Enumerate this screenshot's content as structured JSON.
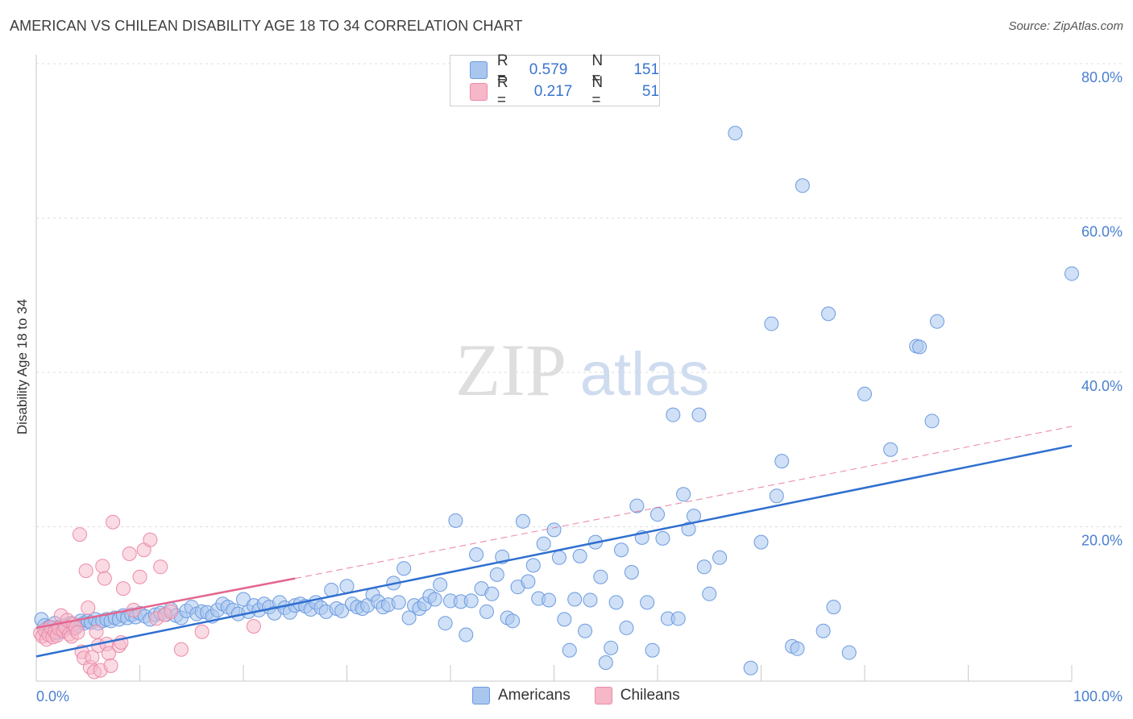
{
  "title": "AMERICAN VS CHILEAN DISABILITY AGE 18 TO 34 CORRELATION CHART",
  "source": "Source: ZipAtlas.com",
  "watermark": {
    "part1": "ZIP",
    "part2": "atlas"
  },
  "legend": {
    "americans": {
      "r_label": "R =",
      "r_value": "0.579",
      "n_label": "N =",
      "n_value": "151"
    },
    "chileans": {
      "r_label": "R =",
      "r_value": "0.217",
      "n_label": "N =",
      "n_value": "51"
    }
  },
  "colors": {
    "americans_fill": "#a9c6ee",
    "americans_stroke": "#6b9be0",
    "americans_line": "#2f6fd0",
    "chileans_fill": "#f6b7c9",
    "chileans_stroke": "#ec8aa7",
    "chileans_line": "#e3668f",
    "tick_text": "#4a7fd0",
    "grid": "#dcdcdc"
  },
  "chart_data": {
    "type": "scatter",
    "title": "AMERICAN VS CHILEAN DISABILITY AGE 18 TO 34 CORRELATION CHART",
    "xlabel": "",
    "ylabel": "Disability Age 18 to 34",
    "xlim": [
      0,
      100
    ],
    "ylim": [
      0,
      80
    ],
    "x_tick_labels": [
      {
        "value": 0,
        "label": "0.0%"
      },
      {
        "value": 100,
        "label": "100.0%"
      }
    ],
    "y_tick_labels": [
      {
        "value": 20,
        "label": "20.0%"
      },
      {
        "value": 40,
        "label": "40.0%"
      },
      {
        "value": 60,
        "label": "60.0%"
      },
      {
        "value": 80,
        "label": "80.0%"
      }
    ],
    "grid": true,
    "legend_position": "top-center",
    "series": [
      {
        "name": "Americans",
        "trend": {
          "x0": 0,
          "y0": 3.2,
          "x1": 100,
          "y1": 30.5,
          "style": "solid"
        },
        "points": [
          [
            0.5,
            8.0
          ],
          [
            0.8,
            7.2
          ],
          [
            1.0,
            6.5
          ],
          [
            1.2,
            7.0
          ],
          [
            1.5,
            6.8
          ],
          [
            1.8,
            7.5
          ],
          [
            2.0,
            6.2
          ],
          [
            2.2,
            7.0
          ],
          [
            2.5,
            6.8
          ],
          [
            2.8,
            7.2
          ],
          [
            3.0,
            7.0
          ],
          [
            3.3,
            7.5
          ],
          [
            3.6,
            6.8
          ],
          [
            4.0,
            7.2
          ],
          [
            4.3,
            7.8
          ],
          [
            4.6,
            7.5
          ],
          [
            5.0,
            7.8
          ],
          [
            5.3,
            7.6
          ],
          [
            5.7,
            8.0
          ],
          [
            6.0,
            7.5
          ],
          [
            6.4,
            7.8
          ],
          [
            6.8,
            8.0
          ],
          [
            7.2,
            7.8
          ],
          [
            7.6,
            8.2
          ],
          [
            8.0,
            8.0
          ],
          [
            8.4,
            8.5
          ],
          [
            8.8,
            8.2
          ],
          [
            9.2,
            8.6
          ],
          [
            9.6,
            8.3
          ],
          [
            10.0,
            8.8
          ],
          [
            10.5,
            8.4
          ],
          [
            11.0,
            8.0
          ],
          [
            11.5,
            8.6
          ],
          [
            12.0,
            8.8
          ],
          [
            12.5,
            8.6
          ],
          [
            13.0,
            9.3
          ],
          [
            13.5,
            8.5
          ],
          [
            14.0,
            8.2
          ],
          [
            14.5,
            9.1
          ],
          [
            15.0,
            9.6
          ],
          [
            15.5,
            8.7
          ],
          [
            16.0,
            9.0
          ],
          [
            16.5,
            8.9
          ],
          [
            17.0,
            8.4
          ],
          [
            17.5,
            9.2
          ],
          [
            18.0,
            10.0
          ],
          [
            18.5,
            9.6
          ],
          [
            19.0,
            9.2
          ],
          [
            19.5,
            8.7
          ],
          [
            20.0,
            10.6
          ],
          [
            20.5,
            9.0
          ],
          [
            21.0,
            9.8
          ],
          [
            21.5,
            9.2
          ],
          [
            22.0,
            10.0
          ],
          [
            22.5,
            9.6
          ],
          [
            23.0,
            8.8
          ],
          [
            23.5,
            10.2
          ],
          [
            24.0,
            9.5
          ],
          [
            24.5,
            8.9
          ],
          [
            25.0,
            9.8
          ],
          [
            25.5,
            10.0
          ],
          [
            26.0,
            9.7
          ],
          [
            26.5,
            9.3
          ],
          [
            27.0,
            10.2
          ],
          [
            27.5,
            9.5
          ],
          [
            28.0,
            9.0
          ],
          [
            28.5,
            11.8
          ],
          [
            29.0,
            9.4
          ],
          [
            29.5,
            9.1
          ],
          [
            30.0,
            12.3
          ],
          [
            30.5,
            10.0
          ],
          [
            31.0,
            9.6
          ],
          [
            31.5,
            9.4
          ],
          [
            32.0,
            9.8
          ],
          [
            32.5,
            11.2
          ],
          [
            33.0,
            10.3
          ],
          [
            33.5,
            9.6
          ],
          [
            34.0,
            9.9
          ],
          [
            34.5,
            12.7
          ],
          [
            35.0,
            10.2
          ],
          [
            35.5,
            14.6
          ],
          [
            36.0,
            8.2
          ],
          [
            36.5,
            9.8
          ],
          [
            37.0,
            9.4
          ],
          [
            37.5,
            10.0
          ],
          [
            38.0,
            11.0
          ],
          [
            38.5,
            10.6
          ],
          [
            39.0,
            12.5
          ],
          [
            39.5,
            7.5
          ],
          [
            40.0,
            10.4
          ],
          [
            40.5,
            20.8
          ],
          [
            41.0,
            10.3
          ],
          [
            41.5,
            6.0
          ],
          [
            42.0,
            10.4
          ],
          [
            42.5,
            16.4
          ],
          [
            43.0,
            12.0
          ],
          [
            43.5,
            9.0
          ],
          [
            44.0,
            11.3
          ],
          [
            44.5,
            13.8
          ],
          [
            45.0,
            16.1
          ],
          [
            45.5,
            8.2
          ],
          [
            46.0,
            7.8
          ],
          [
            46.5,
            12.2
          ],
          [
            47.0,
            20.7
          ],
          [
            47.5,
            12.9
          ],
          [
            48.0,
            15.0
          ],
          [
            48.5,
            10.7
          ],
          [
            49.0,
            17.8
          ],
          [
            49.5,
            10.5
          ],
          [
            50.0,
            19.6
          ],
          [
            50.5,
            16.0
          ],
          [
            51.0,
            8.0
          ],
          [
            51.5,
            4.0
          ],
          [
            52.0,
            10.6
          ],
          [
            52.5,
            16.2
          ],
          [
            53.0,
            6.5
          ],
          [
            53.5,
            10.5
          ],
          [
            54.0,
            18.0
          ],
          [
            54.5,
            13.5
          ],
          [
            55.0,
            2.4
          ],
          [
            55.5,
            4.3
          ],
          [
            56.0,
            10.2
          ],
          [
            56.5,
            17.0
          ],
          [
            57.0,
            6.9
          ],
          [
            57.5,
            14.1
          ],
          [
            58.0,
            22.7
          ],
          [
            58.5,
            18.6
          ],
          [
            59.0,
            10.2
          ],
          [
            59.5,
            4.0
          ],
          [
            60.0,
            21.6
          ],
          [
            60.5,
            18.5
          ],
          [
            61.0,
            8.1
          ],
          [
            61.5,
            34.5
          ],
          [
            62.0,
            8.1
          ],
          [
            62.5,
            24.2
          ],
          [
            63.0,
            19.7
          ],
          [
            63.5,
            21.4
          ],
          [
            64.0,
            34.5
          ],
          [
            64.5,
            14.8
          ],
          [
            65.0,
            11.3
          ],
          [
            67.5,
            71.0
          ],
          [
            69.0,
            1.7
          ],
          [
            71.0,
            46.3
          ],
          [
            71.5,
            24.0
          ],
          [
            72.0,
            28.5
          ],
          [
            73.0,
            4.5
          ],
          [
            73.5,
            4.2
          ],
          [
            74.0,
            64.2
          ],
          [
            76.0,
            6.5
          ],
          [
            76.5,
            47.6
          ],
          [
            77.0,
            9.6
          ],
          [
            78.5,
            3.7
          ],
          [
            80.0,
            37.2
          ],
          [
            82.5,
            30.0
          ],
          [
            85.0,
            43.4
          ],
          [
            85.3,
            43.3
          ],
          [
            86.5,
            33.7
          ],
          [
            87.0,
            46.6
          ],
          [
            70.0,
            18.0
          ],
          [
            66.0,
            16.0
          ],
          [
            100.0,
            52.8
          ]
        ]
      },
      {
        "name": "Chileans",
        "trend": {
          "x0": 0,
          "y0": 6.9,
          "x1": 25,
          "y1": 13.3,
          "style": "solid",
          "extend_x1": 100,
          "extend_y1": 33.0,
          "extend_style": "dashed"
        },
        "points": [
          [
            0.4,
            6.2
          ],
          [
            0.6,
            5.8
          ],
          [
            0.8,
            6.6
          ],
          [
            1.0,
            5.4
          ],
          [
            1.2,
            6.0
          ],
          [
            1.4,
            7.0
          ],
          [
            1.6,
            5.7
          ],
          [
            1.8,
            6.4
          ],
          [
            2.0,
            5.9
          ],
          [
            2.2,
            6.8
          ],
          [
            2.4,
            8.5
          ],
          [
            2.6,
            6.5
          ],
          [
            2.8,
            7.0
          ],
          [
            3.0,
            7.9
          ],
          [
            3.2,
            6.1
          ],
          [
            3.4,
            5.8
          ],
          [
            3.6,
            7.4
          ],
          [
            3.8,
            6.9
          ],
          [
            4.0,
            6.3
          ],
          [
            4.2,
            19.0
          ],
          [
            4.4,
            3.8
          ],
          [
            4.6,
            3.0
          ],
          [
            4.8,
            14.3
          ],
          [
            5.0,
            9.5
          ],
          [
            5.2,
            1.8
          ],
          [
            5.4,
            3.1
          ],
          [
            5.6,
            1.2
          ],
          [
            5.8,
            6.4
          ],
          [
            6.0,
            4.6
          ],
          [
            6.2,
            1.4
          ],
          [
            6.4,
            14.9
          ],
          [
            6.6,
            13.3
          ],
          [
            6.8,
            4.8
          ],
          [
            7.0,
            3.6
          ],
          [
            7.2,
            2.0
          ],
          [
            7.4,
            20.6
          ],
          [
            8.0,
            4.6
          ],
          [
            8.2,
            5.0
          ],
          [
            8.4,
            12.0
          ],
          [
            9.0,
            16.5
          ],
          [
            9.4,
            9.2
          ],
          [
            10.0,
            13.5
          ],
          [
            10.4,
            17.0
          ],
          [
            11.0,
            18.3
          ],
          [
            11.6,
            8.1
          ],
          [
            12.0,
            14.8
          ],
          [
            12.4,
            8.6
          ],
          [
            13.0,
            9.0
          ],
          [
            14.0,
            4.1
          ],
          [
            16.0,
            6.4
          ],
          [
            21.0,
            7.1
          ]
        ]
      }
    ]
  },
  "bottom_legend": {
    "americans": "Americans",
    "chileans": "Chileans"
  }
}
